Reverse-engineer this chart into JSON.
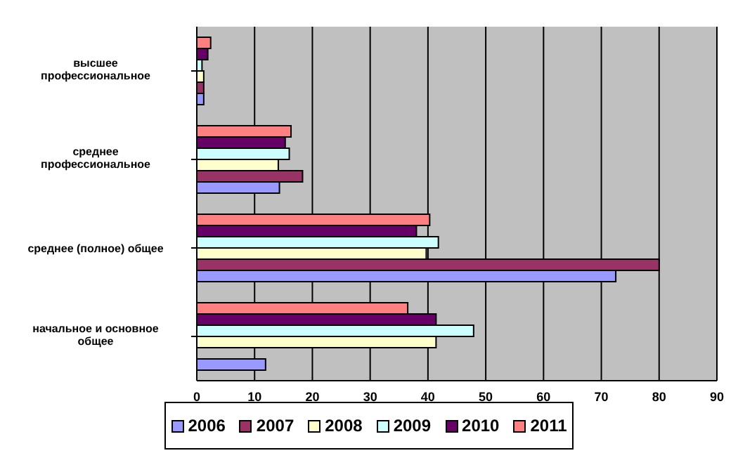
{
  "chart_data": {
    "type": "bar",
    "orientation": "horizontal",
    "categories": [
      "высшее профессиональное",
      "среднее профессиональное",
      "среднее (полное) общее",
      "начальное и основное общее"
    ],
    "series": [
      {
        "name": "2006",
        "color": "#9999ff",
        "values": [
          1.2,
          14.3,
          72.5,
          11.9
        ]
      },
      {
        "name": "2007",
        "color": "#993366",
        "values": [
          1.2,
          18.3,
          80,
          null
        ]
      },
      {
        "name": "2008",
        "color": "#ffffcc",
        "values": [
          1.2,
          14.1,
          39.7,
          41.4
        ]
      },
      {
        "name": "2009",
        "color": "#ccffff",
        "values": [
          0.9,
          16.0,
          41.8,
          47.9
        ]
      },
      {
        "name": "2010",
        "color": "#660066",
        "values": [
          1.9,
          15.3,
          38.0,
          41.4
        ]
      },
      {
        "name": "2011",
        "color": "#ff8080",
        "values": [
          2.4,
          16.3,
          40.3,
          36.5
        ]
      }
    ],
    "xlim": [
      0,
      90
    ],
    "xticks": [
      0,
      10,
      20,
      30,
      40,
      50,
      60,
      70,
      80,
      90
    ],
    "grid": "x",
    "legend": "bottom"
  }
}
